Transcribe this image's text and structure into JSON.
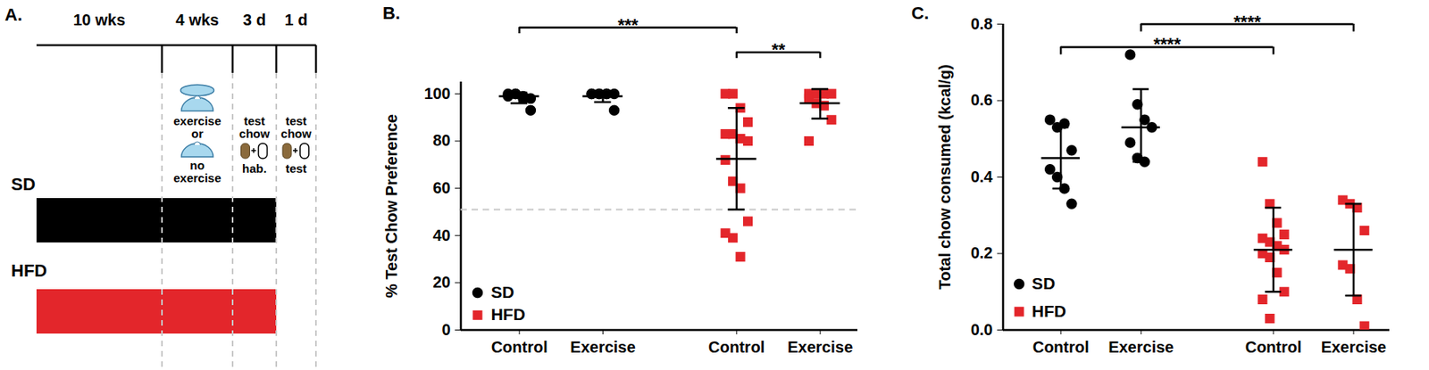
{
  "diagram": {
    "title": "A.",
    "phases": [
      {
        "duration": "10 wks"
      },
      {
        "duration": "4 wks",
        "text": [
          "exercise",
          "or",
          "no",
          "exercise"
        ]
      },
      {
        "duration": "3 d",
        "text": [
          "test",
          "chow",
          "hab."
        ]
      },
      {
        "duration": "1 d",
        "text": [
          "test",
          "chow",
          "test"
        ]
      }
    ],
    "groups": [
      {
        "name": "SD",
        "color": "#000000"
      },
      {
        "name": "HFD",
        "color": "#e3262b"
      }
    ]
  },
  "chart_data": [
    {
      "type": "scatter",
      "title": "B.",
      "y_label": "% Test Chow Preference",
      "categories": [
        "Control",
        "Exercise",
        "Control",
        "Exercise"
      ],
      "series": [
        {
          "name": "SD",
          "color": "#000000",
          "marker": "circle",
          "values": [
            [
              100,
              100,
              99,
              98,
              99,
              100,
              98,
              93
            ],
            [
              100,
              100,
              100,
              100,
              100,
              100,
              100,
              93
            ],
            null,
            null
          ],
          "mean": [
            99,
            99,
            null,
            null
          ],
          "error_bars": [
            [
              96,
              100.5
            ],
            [
              96.5,
              101
            ],
            null,
            null
          ]
        },
        {
          "name": "HFD",
          "color": "#e3262b",
          "marker": "square",
          "values": [
            null,
            null,
            [
              100,
              100,
              94,
              88,
              83,
              83,
              81,
              80,
              72,
              63,
              60,
              46,
              41,
              39,
              31
            ],
            [
              100,
              100,
              100,
              100,
              98,
              96,
              95,
              89,
              80
            ]
          ],
          "mean": [
            null,
            null,
            72.5,
            96
          ],
          "error_bars": [
            null,
            null,
            [
              51,
              94
            ],
            [
              89.5,
              102
            ]
          ]
        }
      ],
      "reference_line": 51,
      "annotations": [
        {
          "text": "***",
          "from": 0,
          "to": 2
        },
        {
          "text": "**",
          "from": 2,
          "to": 3
        }
      ],
      "ylim": [
        0,
        105
      ],
      "yticks": [
        0,
        20,
        40,
        60,
        80,
        100
      ],
      "legend": "lower left"
    },
    {
      "type": "scatter",
      "title": "C.",
      "y_label": "Total chow consumed (kcal/g)",
      "categories": [
        "Control",
        "Exercise",
        "Control",
        "Exercise"
      ],
      "series": [
        {
          "name": "SD",
          "color": "#000000",
          "marker": "circle",
          "values": [
            [
              0.55,
              0.53,
              0.54,
              0.47,
              0.42,
              0.4,
              0.37,
              0.33
            ],
            [
              0.72,
              0.59,
              0.55,
              0.53,
              0.49,
              0.45,
              0.44
            ],
            null,
            null
          ],
          "mean": [
            0.45,
            0.53,
            null,
            null
          ],
          "error_bars": [
            [
              0.37,
              0.53
            ],
            [
              0.44,
              0.63
            ],
            null,
            null
          ]
        },
        {
          "name": "HFD",
          "color": "#e3262b",
          "marker": "square",
          "values": [
            null,
            null,
            [
              0.44,
              0.33,
              0.28,
              0.25,
              0.24,
              0.23,
              0.22,
              0.21,
              0.2,
              0.19,
              0.15,
              0.1,
              0.08,
              0.03
            ],
            [
              0.34,
              0.33,
              0.32,
              0.26,
              0.17,
              0.16,
              0.08,
              0.01
            ]
          ],
          "mean": [
            null,
            null,
            0.21,
            0.21
          ],
          "error_bars": [
            null,
            null,
            [
              0.1,
              0.32
            ],
            [
              0.09,
              0.33
            ]
          ]
        }
      ],
      "annotations": [
        {
          "text": "****",
          "from": 1,
          "to": 3
        },
        {
          "text": "****",
          "from": 0,
          "to": 2
        }
      ],
      "ylim": [
        0,
        0.8
      ],
      "yticks": [
        {
          "value": 0,
          "label": "0.0"
        },
        {
          "value": 0.2,
          "label": "0.2"
        },
        {
          "value": 0.4,
          "label": "0.4"
        },
        {
          "value": 0.6,
          "label": "0.6"
        },
        {
          "value": 0.8,
          "label": "0.8"
        }
      ],
      "legend": "lower left"
    }
  ]
}
